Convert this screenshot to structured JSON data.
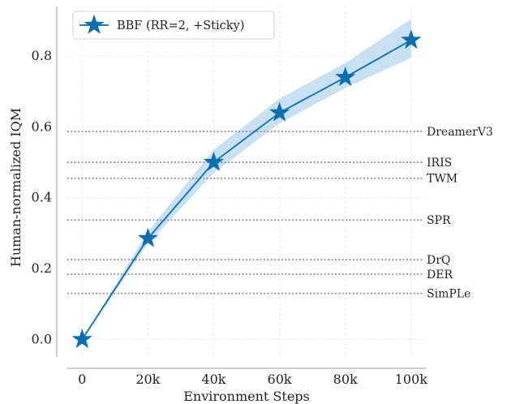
{
  "chart_data": {
    "type": "line",
    "xlabel": "Environment Steps",
    "ylabel": "Human-normalized IQM",
    "x": [
      0,
      20000,
      40000,
      60000,
      80000,
      100000
    ],
    "x_ticks": [
      0,
      20000,
      40000,
      60000,
      80000,
      100000
    ],
    "x_tick_labels": [
      "0",
      "20k",
      "40k",
      "60k",
      "80k",
      "100k"
    ],
    "y_ticks": [
      0.0,
      0.2,
      0.4,
      0.6,
      0.8
    ],
    "y_tick_labels": [
      "0.0",
      "0.2",
      "0.4",
      "0.6",
      "0.8"
    ],
    "xlim": [
      -4500,
      104000
    ],
    "ylim": [
      -0.045,
      0.94
    ],
    "grid": true,
    "legend_position": "top-left",
    "series": [
      {
        "name": "BBF (RR=2, +Sticky)",
        "values": [
          0.0,
          0.285,
          0.5,
          0.64,
          0.74,
          0.845
        ],
        "ci_lower": [
          0.0,
          0.27,
          0.47,
          0.61,
          0.71,
          0.795
        ],
        "ci_upper": [
          0.0,
          0.305,
          0.535,
          0.68,
          0.78,
          0.905
        ],
        "color": "#0a6fad",
        "band_color": "#b6d5ec",
        "marker": "star"
      }
    ],
    "reference_lines": [
      {
        "label": "DreamerV3",
        "value": 0.587
      },
      {
        "label": "IRIS",
        "value": 0.5
      },
      {
        "label": "TWM",
        "value": 0.455
      },
      {
        "label": "SPR",
        "value": 0.337
      },
      {
        "label": "DrQ",
        "value": 0.225
      },
      {
        "label": "DER",
        "value": 0.184
      },
      {
        "label": "SimPLe",
        "value": 0.13
      }
    ],
    "reference_line_color": "#888888"
  }
}
